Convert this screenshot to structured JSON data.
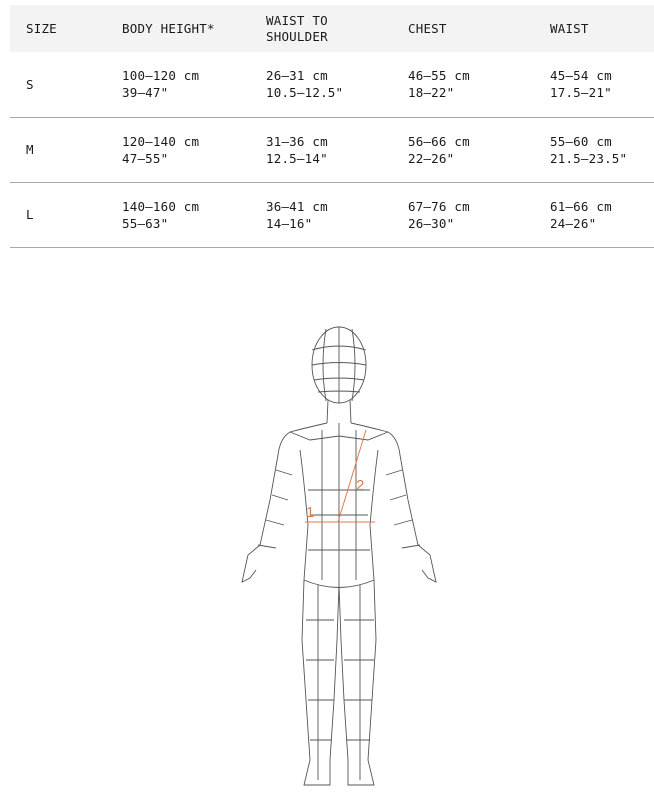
{
  "table": {
    "headers": [
      "SIZE",
      "BODY HEIGHT*",
      "WAIST TO SHOULDER",
      "CHEST",
      "WAIST"
    ],
    "rows": [
      {
        "size": "S",
        "body_height": [
          "100–120 cm",
          "39–47\""
        ],
        "waist_to_shoulder": [
          "26–31 cm",
          "10.5–12.5\""
        ],
        "chest": [
          "46–55 cm",
          "18–22\""
        ],
        "waist": [
          "45–54 cm",
          "17.5–21\""
        ]
      },
      {
        "size": "M",
        "body_height": [
          "120–140 cm",
          "47–55\""
        ],
        "waist_to_shoulder": [
          "31–36 cm",
          "12.5–14\""
        ],
        "chest": [
          "56–66 cm",
          "22–26\""
        ],
        "waist": [
          "55–60 cm",
          "21.5–23.5\""
        ]
      },
      {
        "size": "L",
        "body_height": [
          "140–160 cm",
          "55–63\""
        ],
        "waist_to_shoulder": [
          "36–41 cm",
          "14–16\""
        ],
        "chest": [
          "67–76 cm",
          "26–30\""
        ],
        "waist": [
          "61–66 cm",
          "24–26\""
        ]
      }
    ]
  },
  "figure": {
    "markers": [
      "1",
      "2"
    ],
    "accent_color": "#e07a4f"
  }
}
